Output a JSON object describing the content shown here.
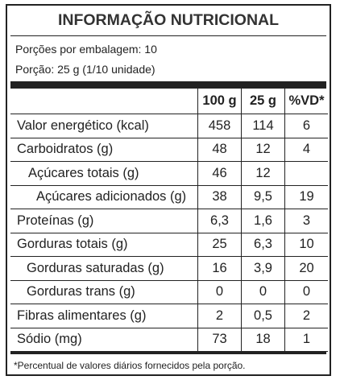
{
  "header": {
    "title": "INFORMAÇÃO NUTRICIONAL",
    "servings_per_package": "Porções por embalagem: 10",
    "serving_size": "Porção: 25 g (1/10 unidade)"
  },
  "table": {
    "columns": [
      "100 g",
      "25 g",
      "%VD*"
    ],
    "rows": [
      [
        "Valor energético (kcal)",
        "458",
        "114",
        "6"
      ],
      [
        "Carboidratos (g)",
        "48",
        "12",
        "4"
      ],
      [
        "Açúcares totais (g)",
        "46",
        "12",
        null
      ],
      [
        "Açúcares adicionados (g)",
        "38",
        "9,5",
        "19"
      ],
      [
        "Proteínas (g)",
        "6,3",
        "1,6",
        "3"
      ],
      [
        "Gorduras totais (g)",
        "25",
        "6,3",
        "10"
      ],
      [
        "Gorduras saturadas (g)",
        "16",
        "3,9",
        "20"
      ],
      [
        "Gorduras trans (g)",
        "0",
        "0",
        "0"
      ],
      [
        "Fibras alimentares (g)",
        "2",
        "0,5",
        "2"
      ],
      [
        "Sódio (mg)",
        "73",
        "18",
        "1"
      ]
    ]
  },
  "footnote": "*Percentual de valores diários fornecidos pela porção."
}
